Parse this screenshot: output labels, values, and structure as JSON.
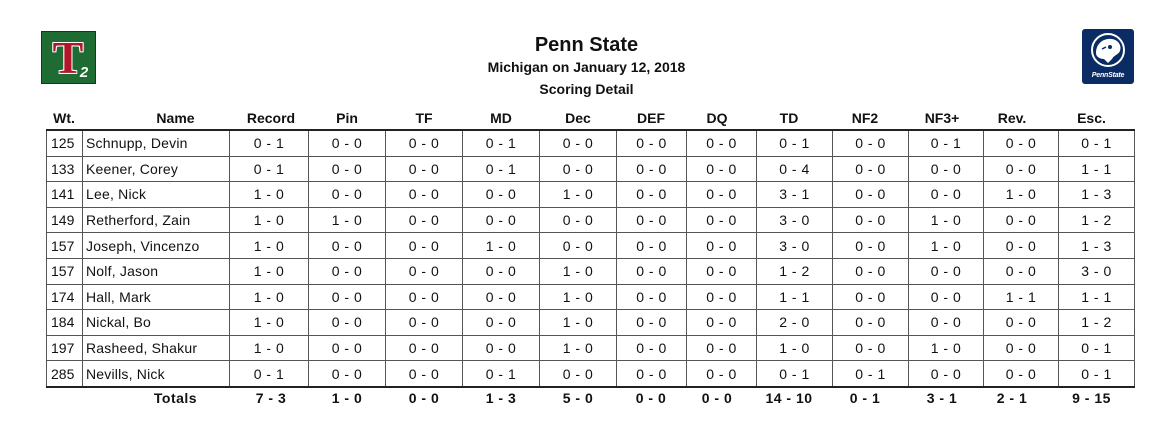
{
  "logos": {
    "left": {
      "letter": "T",
      "sub": "2"
    },
    "right": {
      "word": "PennState"
    }
  },
  "header": {
    "title": "Penn State",
    "subtitle": "Michigan on January 12, 2018",
    "subtitle2": "Scoring Detail"
  },
  "columns": [
    "Wt.",
    "Name",
    "Record",
    "Pin",
    "TF",
    "MD",
    "Dec",
    "DEF",
    "DQ",
    "TD",
    "NF2",
    "NF3+",
    "Rev.",
    "Esc."
  ],
  "rows": [
    {
      "wt": "125",
      "name": "Schnupp, Devin",
      "record": "0 - 1",
      "pin": "0 - 0",
      "tf": "0 - 0",
      "md": "0 - 1",
      "dec": "0 - 0",
      "def": "0 - 0",
      "dq": "0 - 0",
      "td": "0 - 1",
      "nf2": "0 - 0",
      "nf3": "0 - 1",
      "rev": "0 - 0",
      "esc": "0 - 1"
    },
    {
      "wt": "133",
      "name": "Keener, Corey",
      "record": "0 - 1",
      "pin": "0 - 0",
      "tf": "0 - 0",
      "md": "0 - 1",
      "dec": "0 - 0",
      "def": "0 - 0",
      "dq": "0 - 0",
      "td": "0 - 4",
      "nf2": "0 - 0",
      "nf3": "0 - 0",
      "rev": "0 - 0",
      "esc": "1 - 1"
    },
    {
      "wt": "141",
      "name": "Lee, Nick",
      "record": "1 - 0",
      "pin": "0 - 0",
      "tf": "0 - 0",
      "md": "0 - 0",
      "dec": "1 - 0",
      "def": "0 - 0",
      "dq": "0 - 0",
      "td": "3 - 1",
      "nf2": "0 - 0",
      "nf3": "0 - 0",
      "rev": "1 - 0",
      "esc": "1 - 3"
    },
    {
      "wt": "149",
      "name": "Retherford, Zain",
      "record": "1 - 0",
      "pin": "1 - 0",
      "tf": "0 - 0",
      "md": "0 - 0",
      "dec": "0 - 0",
      "def": "0 - 0",
      "dq": "0 - 0",
      "td": "3 - 0",
      "nf2": "0 - 0",
      "nf3": "1 - 0",
      "rev": "0 - 0",
      "esc": "1 - 2"
    },
    {
      "wt": "157",
      "name": "Joseph, Vincenzo",
      "record": "1 - 0",
      "pin": "0 - 0",
      "tf": "0 - 0",
      "md": "1 - 0",
      "dec": "0 - 0",
      "def": "0 - 0",
      "dq": "0 - 0",
      "td": "3 - 0",
      "nf2": "0 - 0",
      "nf3": "1 - 0",
      "rev": "0 - 0",
      "esc": "1 - 3"
    },
    {
      "wt": "157",
      "name": "Nolf, Jason",
      "record": "1 - 0",
      "pin": "0 - 0",
      "tf": "0 - 0",
      "md": "0 - 0",
      "dec": "1 - 0",
      "def": "0 - 0",
      "dq": "0 - 0",
      "td": "1 - 2",
      "nf2": "0 - 0",
      "nf3": "0 - 0",
      "rev": "0 - 0",
      "esc": "3 - 0"
    },
    {
      "wt": "174",
      "name": "Hall, Mark",
      "record": "1 - 0",
      "pin": "0 - 0",
      "tf": "0 - 0",
      "md": "0 - 0",
      "dec": "1 - 0",
      "def": "0 - 0",
      "dq": "0 - 0",
      "td": "1 - 1",
      "nf2": "0 - 0",
      "nf3": "0 - 0",
      "rev": "1 - 1",
      "esc": "1 - 1"
    },
    {
      "wt": "184",
      "name": "Nickal, Bo",
      "record": "1 - 0",
      "pin": "0 - 0",
      "tf": "0 - 0",
      "md": "0 - 0",
      "dec": "1 - 0",
      "def": "0 - 0",
      "dq": "0 - 0",
      "td": "2 - 0",
      "nf2": "0 - 0",
      "nf3": "0 - 0",
      "rev": "0 - 0",
      "esc": "1 - 2"
    },
    {
      "wt": "197",
      "name": "Rasheed, Shakur",
      "record": "1 - 0",
      "pin": "0 - 0",
      "tf": "0 - 0",
      "md": "0 - 0",
      "dec": "1 - 0",
      "def": "0 - 0",
      "dq": "0 - 0",
      "td": "1 - 0",
      "nf2": "0 - 0",
      "nf3": "1 - 0",
      "rev": "0 - 0",
      "esc": "0 - 1"
    },
    {
      "wt": "285",
      "name": "Nevills, Nick",
      "record": "0 - 1",
      "pin": "0 - 0",
      "tf": "0 - 0",
      "md": "0 - 1",
      "dec": "0 - 0",
      "def": "0 - 0",
      "dq": "0 - 0",
      "td": "0 - 1",
      "nf2": "0 - 1",
      "nf3": "0 - 0",
      "rev": "0 - 0",
      "esc": "0 - 1"
    }
  ],
  "totals": {
    "label": "Totals",
    "record": "7 - 3",
    "pin": "1 - 0",
    "tf": "0 - 0",
    "md": "1 - 3",
    "dec": "5 - 0",
    "def": "0 - 0",
    "dq": "0 - 0",
    "td": "14 - 10",
    "nf2": "0 - 1",
    "nf3": "3 - 1",
    "rev": "2 - 1",
    "esc": "9 - 15"
  }
}
